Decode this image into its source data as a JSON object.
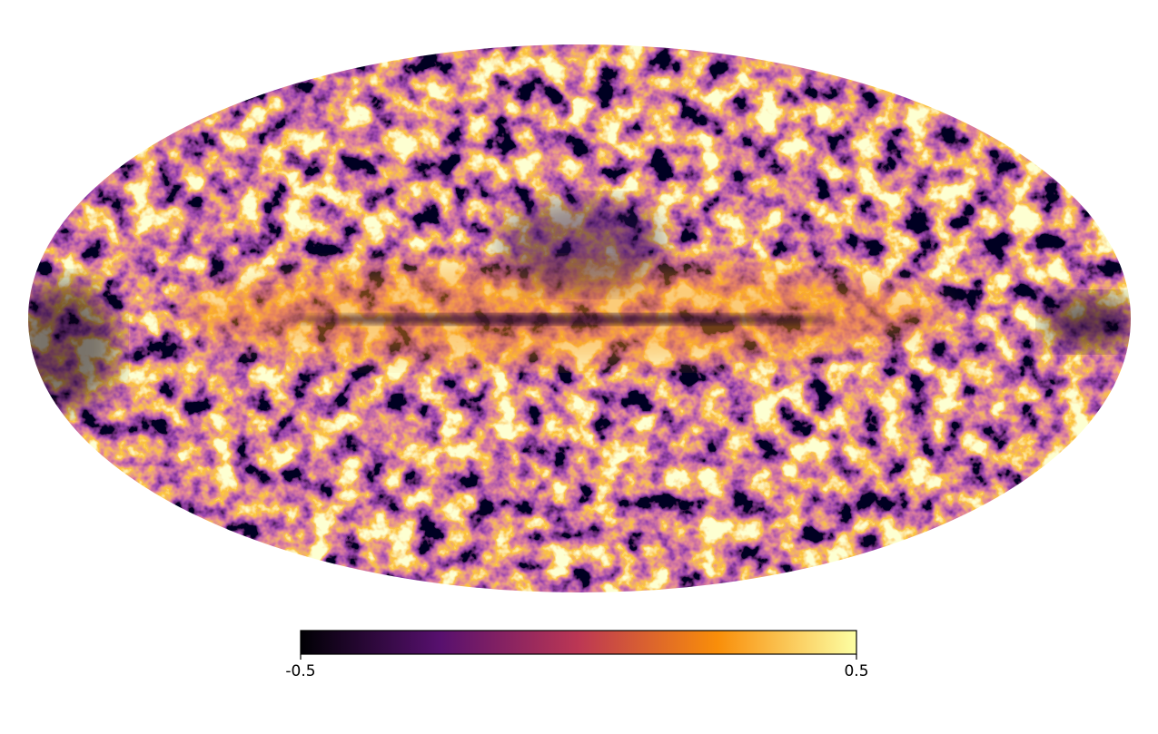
{
  "chart_data": {
    "type": "mollweide",
    "colormap": [
      "#000004",
      "#57106e",
      "#bc3754",
      "#f98e09",
      "#fcffa4"
    ],
    "clim": [
      -0.5,
      0.5
    ],
    "cticks": [
      -0.5,
      0.5
    ]
  }
}
